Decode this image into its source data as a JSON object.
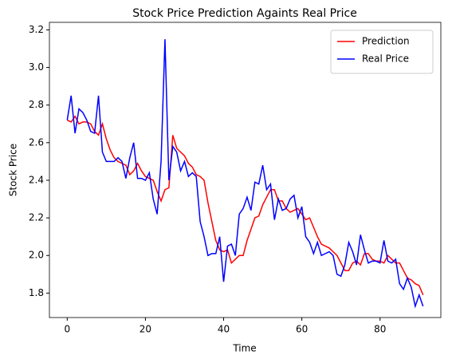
{
  "chart_data": {
    "type": "line",
    "title": "Stock Price Prediction Againts Real Price",
    "x_label": "Time",
    "y_label": "Stock Price",
    "x": [
      0,
      1,
      2,
      3,
      4,
      5,
      6,
      7,
      8,
      9,
      10,
      11,
      12,
      13,
      14,
      15,
      16,
      17,
      18,
      19,
      20,
      21,
      22,
      23,
      24,
      25,
      26,
      27,
      28,
      29,
      30,
      31,
      32,
      33,
      34,
      35,
      36,
      37,
      38,
      39,
      40,
      41,
      42,
      43,
      44,
      45,
      46,
      47,
      48,
      49,
      50,
      51,
      52,
      53,
      54,
      55,
      56,
      57,
      58,
      59,
      60,
      61,
      62,
      63,
      64,
      65,
      66,
      67,
      68,
      69,
      70,
      71,
      72,
      73,
      74,
      75,
      76,
      77,
      78,
      79,
      80,
      81,
      82,
      83,
      84,
      85,
      86,
      87,
      88,
      89,
      90,
      91
    ],
    "series": [
      {
        "name": "Prediction",
        "color": "#ff0000",
        "values": [
          2.72,
          2.71,
          2.74,
          2.7,
          2.71,
          2.71,
          2.7,
          2.66,
          2.64,
          2.7,
          2.62,
          2.56,
          2.52,
          2.5,
          2.49,
          2.48,
          2.43,
          2.45,
          2.49,
          2.45,
          2.42,
          2.41,
          2.4,
          2.34,
          2.29,
          2.35,
          2.36,
          2.64,
          2.57,
          2.55,
          2.53,
          2.49,
          2.47,
          2.43,
          2.42,
          2.4,
          2.28,
          2.18,
          2.08,
          2.03,
          2.02,
          2.03,
          1.96,
          1.98,
          2.0,
          2.0,
          2.08,
          2.14,
          2.2,
          2.21,
          2.27,
          2.31,
          2.35,
          2.35,
          2.29,
          2.29,
          2.25,
          2.23,
          2.24,
          2.25,
          2.22,
          2.19,
          2.2,
          2.15,
          2.1,
          2.06,
          2.05,
          2.04,
          2.02,
          2.0,
          1.96,
          1.92,
          1.92,
          1.96,
          1.97,
          1.95,
          2.01,
          2.01,
          1.98,
          1.97,
          1.97,
          1.96,
          2.0,
          1.98,
          1.96,
          1.96,
          1.92,
          1.88,
          1.87,
          1.85,
          1.84,
          1.79
        ]
      },
      {
        "name": "Real Price",
        "color": "#0000ff",
        "values": [
          2.72,
          2.85,
          2.65,
          2.78,
          2.76,
          2.72,
          2.66,
          2.65,
          2.85,
          2.55,
          2.5,
          2.5,
          2.5,
          2.52,
          2.5,
          2.41,
          2.52,
          2.6,
          2.41,
          2.41,
          2.4,
          2.44,
          2.3,
          2.22,
          2.5,
          3.15,
          2.4,
          2.58,
          2.55,
          2.45,
          2.5,
          2.42,
          2.44,
          2.42,
          2.18,
          2.1,
          2.0,
          2.01,
          2.01,
          2.1,
          1.86,
          2.05,
          2.06,
          2.0,
          2.22,
          2.25,
          2.31,
          2.24,
          2.39,
          2.38,
          2.48,
          2.35,
          2.38,
          2.19,
          2.3,
          2.24,
          2.25,
          2.3,
          2.32,
          2.2,
          2.26,
          2.1,
          2.07,
          2.01,
          2.07,
          2.0,
          2.01,
          2.02,
          2.0,
          1.9,
          1.89,
          1.95,
          2.07,
          2.02,
          1.95,
          2.11,
          2.03,
          1.96,
          1.97,
          1.97,
          1.96,
          2.08,
          1.97,
          1.96,
          1.98,
          1.85,
          1.82,
          1.88,
          1.83,
          1.73,
          1.79,
          1.73
        ]
      }
    ],
    "xlim": [
      -4.55,
      95.55
    ],
    "xticks": [
      0,
      20,
      40,
      60,
      80
    ],
    "ylim": [
      1.67,
      3.24
    ],
    "yticks": [
      1.8,
      {
        "value": 2,
        "label": "2.0"
      },
      2.2,
      2.4,
      2.6,
      2.8,
      {
        "value": 3,
        "label": "3.0"
      },
      3.2
    ],
    "legend": "upper right",
    "grid": false
  }
}
